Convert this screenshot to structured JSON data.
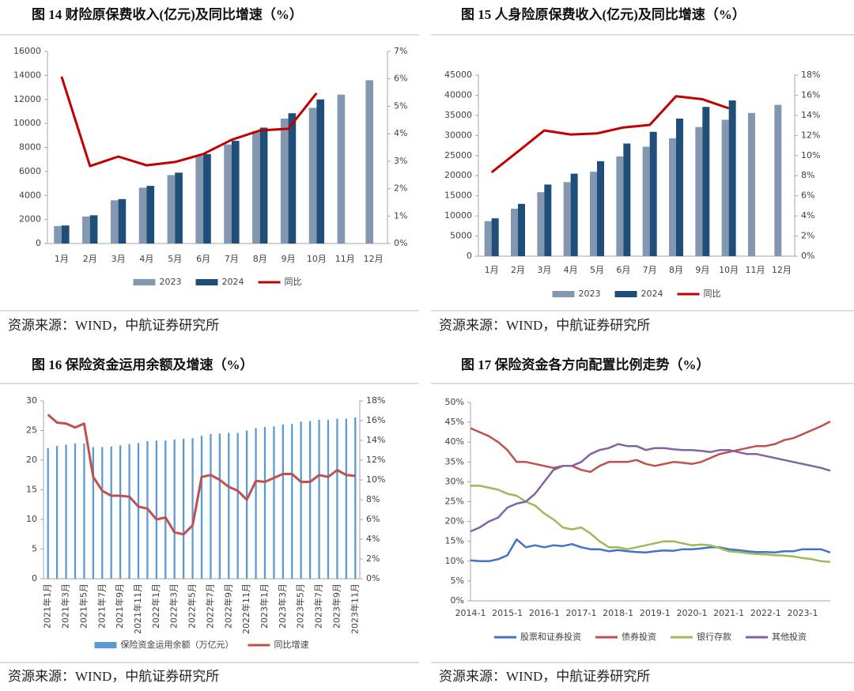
{
  "chart_data": [
    {
      "type": "bar",
      "title": "图 14 财险原保费收入(亿元)及同比增速（%）",
      "source": "资源来源：WIND，中航证券研究所",
      "categories": [
        "1月",
        "2月",
        "3月",
        "4月",
        "5月",
        "6月",
        "7月",
        "8月",
        "9月",
        "10月",
        "11月",
        "12月"
      ],
      "series": [
        {
          "name": "2023",
          "color": "#8497b0",
          "values": [
            1450,
            2250,
            3600,
            4650,
            5700,
            7300,
            8250,
            9350,
            10400,
            11300,
            12400,
            13600
          ]
        },
        {
          "name": "2024",
          "color": "#1f4e79",
          "values": [
            1500,
            2350,
            3700,
            4800,
            5900,
            7450,
            8550,
            9650,
            10850,
            12000,
            null,
            null
          ]
        },
        {
          "name": "同比",
          "type": "line",
          "axis": "y2",
          "color": "#c00000",
          "values": [
            6.08,
            2.82,
            3.17,
            2.85,
            2.97,
            3.26,
            3.78,
            4.12,
            4.18,
            5.48,
            null,
            null
          ]
        }
      ],
      "ylim": [
        0,
        16000
      ],
      "yticks": [
        0,
        2000,
        4000,
        6000,
        8000,
        10000,
        12000,
        14000,
        16000
      ],
      "y2lim": [
        0,
        7
      ],
      "y2ticks": [
        {
          "value": 0,
          "label": "0%"
        },
        {
          "value": 1,
          "label": "1%"
        },
        {
          "value": 2,
          "label": "2%"
        },
        {
          "value": 3,
          "label": "3%"
        },
        {
          "value": 4,
          "label": "4%"
        },
        {
          "value": 5,
          "label": "5%"
        },
        {
          "value": 6,
          "label": "6%"
        },
        {
          "value": 7,
          "label": "7%"
        }
      ]
    },
    {
      "type": "bar",
      "title": "图 15 人身险原保费收入(亿元)及同比增速（%）",
      "source": "资源来源：WIND，中航证券研究所",
      "categories": [
        "1月",
        "2月",
        "3月",
        "4月",
        "5月",
        "6月",
        "7月",
        "8月",
        "9月",
        "10月",
        "11月",
        "12月"
      ],
      "series": [
        {
          "name": "2023",
          "color": "#8497b0",
          "values": [
            8700,
            11800,
            15900,
            18400,
            21000,
            24800,
            27200,
            29300,
            32100,
            33900,
            35600,
            37600
          ]
        },
        {
          "name": "2024",
          "color": "#1f4e79",
          "values": [
            9400,
            13000,
            17800,
            20500,
            23600,
            28000,
            30900,
            34200,
            37100,
            38700,
            null,
            null
          ]
        },
        {
          "name": "同比",
          "type": "line",
          "axis": "y2",
          "color": "#c00000",
          "values": [
            8.33,
            10.4,
            12.5,
            12.1,
            12.2,
            12.8,
            13.05,
            15.9,
            15.6,
            14.7,
            null,
            null
          ]
        }
      ],
      "ylim": [
        0,
        45000
      ],
      "yticks": [
        0,
        5000,
        10000,
        15000,
        20000,
        25000,
        30000,
        35000,
        40000,
        45000
      ],
      "y2lim": [
        0,
        18
      ],
      "y2ticks": [
        {
          "value": 0,
          "label": "0%"
        },
        {
          "value": 2,
          "label": "2%"
        },
        {
          "value": 4,
          "label": "4%"
        },
        {
          "value": 6,
          "label": "6%"
        },
        {
          "value": 8,
          "label": "8%"
        },
        {
          "value": 10,
          "label": "10%"
        },
        {
          "value": 12,
          "label": "12%"
        },
        {
          "value": 14,
          "label": "14%"
        },
        {
          "value": 16,
          "label": "16%"
        },
        {
          "value": 18,
          "label": "18%"
        }
      ]
    },
    {
      "type": "bar",
      "title": "图 16 保险资金运用余额及增速（%）",
      "source": "资源来源：WIND，中航证券研究所",
      "categories": [
        "2021年1月",
        null,
        "2021年3月",
        null,
        "2021年5月",
        null,
        "2021年7月",
        null,
        "2021年9月",
        null,
        "2021年11月",
        null,
        "2022年1月",
        null,
        "2022年3月",
        null,
        "2022年5月",
        null,
        "2022年7月",
        null,
        "2022年9月",
        null,
        "2022年11月",
        null,
        "2023年1月",
        null,
        "2023年3月",
        null,
        "2023年5月",
        null,
        "2023年7月",
        null,
        "2023年9月",
        null,
        "2023年11月"
      ],
      "series": [
        {
          "name": "保险资金运用余额（万亿元）",
          "color": "#5b9bd5",
          "values": [
            22,
            22.4,
            22.6,
            22.8,
            22.8,
            22.2,
            22.2,
            22.3,
            22.5,
            22.7,
            22.9,
            23.2,
            23.3,
            23.3,
            23.5,
            23.6,
            23.7,
            24.1,
            24.4,
            24.5,
            24.6,
            24.6,
            25.0,
            25.4,
            25.6,
            25.7,
            26.0,
            26.1,
            26.5,
            26.6,
            26.8,
            26.8,
            27.0,
            27.0,
            27.2
          ]
        },
        {
          "name": "同比增速",
          "type": "line",
          "axis": "y2",
          "color": "#c0504d",
          "values": [
            16.6,
            15.8,
            15.7,
            15.3,
            15.7,
            10.3,
            8.9,
            8.4,
            8.4,
            8.3,
            7.3,
            7.1,
            6.0,
            6.2,
            4.7,
            4.5,
            5.4,
            10.3,
            10.5,
            10.0,
            9.3,
            8.9,
            8.0,
            9.9,
            9.8,
            10.2,
            10.6,
            10.6,
            9.8,
            9.8,
            10.5,
            10.3,
            11.0,
            10.5,
            10.4
          ]
        }
      ],
      "ylim": [
        0,
        30
      ],
      "yticks": [
        0,
        5,
        10,
        15,
        20,
        25,
        30
      ],
      "y2lim": [
        0,
        18
      ],
      "y2ticks": [
        {
          "value": 0,
          "label": "0%"
        },
        {
          "value": 2,
          "label": "2%"
        },
        {
          "value": 4,
          "label": "4%"
        },
        {
          "value": 6,
          "label": "6%"
        },
        {
          "value": 8,
          "label": "8%"
        },
        {
          "value": 10,
          "label": "10%"
        },
        {
          "value": 12,
          "label": "12%"
        },
        {
          "value": 14,
          "label": "14%"
        },
        {
          "value": 16,
          "label": "16%"
        },
        {
          "value": 18,
          "label": "18%"
        }
      ]
    },
    {
      "type": "line",
      "title": "图 17 保险资金各方向配置比例走势（%）",
      "source": "资源来源：WIND，中航证券研究所",
      "categories": [
        "2014-1",
        null,
        null,
        null,
        "2015-1",
        null,
        null,
        null,
        "2016-1",
        null,
        null,
        null,
        "2017-1",
        null,
        null,
        null,
        "2018-1",
        null,
        null,
        null,
        "2019-1",
        null,
        null,
        null,
        "2020-1",
        null,
        null,
        null,
        "2021-1",
        null,
        null,
        null,
        "2022-1",
        null,
        null,
        null,
        "2023-1",
        null,
        null,
        null
      ],
      "series": [
        {
          "name": "股票和证券投资",
          "color": "#4472c4",
          "values": [
            10.2,
            10,
            10,
            10.5,
            11.5,
            15.5,
            13.5,
            14,
            13.5,
            14,
            13.8,
            14.3,
            13.5,
            13,
            13,
            12.5,
            12.8,
            12.5,
            12.3,
            12.2,
            12.5,
            12.7,
            12.6,
            13,
            13,
            13.2,
            13.5,
            13.5,
            13,
            12.8,
            12.5,
            12.3,
            12.3,
            12.2,
            12.5,
            12.5,
            13,
            13,
            13,
            12.2
          ]
        },
        {
          "name": "债券投资",
          "color": "#c0504d",
          "values": [
            43.5,
            42.5,
            41.5,
            40,
            38,
            35,
            35,
            34.5,
            34,
            33.5,
            34,
            34,
            33,
            32.5,
            34,
            35,
            35,
            35,
            35.5,
            34.5,
            34,
            34.5,
            35,
            34.8,
            34.5,
            35,
            36,
            37,
            37.5,
            38,
            38.5,
            39,
            39,
            39.5,
            40.5,
            41,
            42,
            43,
            44,
            45.2
          ]
        },
        {
          "name": "银行存款",
          "color": "#9bbb59",
          "values": [
            29,
            29,
            28.5,
            28,
            27,
            26.5,
            25,
            24,
            22,
            20.5,
            18.5,
            18,
            18.5,
            17,
            15,
            13.5,
            13.5,
            13,
            13.5,
            14,
            14.5,
            15,
            15,
            14.5,
            14,
            14.2,
            14,
            13.3,
            12.5,
            12.3,
            12,
            11.8,
            11.7,
            11.5,
            11.4,
            11.2,
            10.8,
            10.5,
            10,
            9.8
          ]
        },
        {
          "name": "其他投资",
          "color": "#8064a2",
          "values": [
            17.5,
            18.5,
            20,
            21,
            23.5,
            24.5,
            25,
            27,
            30,
            33,
            34,
            34,
            35,
            37,
            38,
            38.5,
            39.5,
            39,
            39,
            38,
            38.5,
            38.5,
            38.2,
            38,
            38,
            37.8,
            37.5,
            38,
            38,
            37.5,
            37,
            37,
            36.5,
            36,
            35.5,
            35,
            34.5,
            34,
            33.5,
            32.8
          ]
        }
      ],
      "ylim": [
        0,
        50
      ],
      "yticks": [
        {
          "value": 0,
          "label": "0%"
        },
        {
          "value": 5,
          "label": "5%"
        },
        {
          "value": 10,
          "label": "10%"
        },
        {
          "value": 15,
          "label": "15%"
        },
        {
          "value": 20,
          "label": "20%"
        },
        {
          "value": 25,
          "label": "25%"
        },
        {
          "value": 30,
          "label": "30%"
        },
        {
          "value": 35,
          "label": "35%"
        },
        {
          "value": 40,
          "label": "40%"
        },
        {
          "value": 45,
          "label": "45%"
        },
        {
          "value": 50,
          "label": "50%"
        }
      ]
    }
  ]
}
